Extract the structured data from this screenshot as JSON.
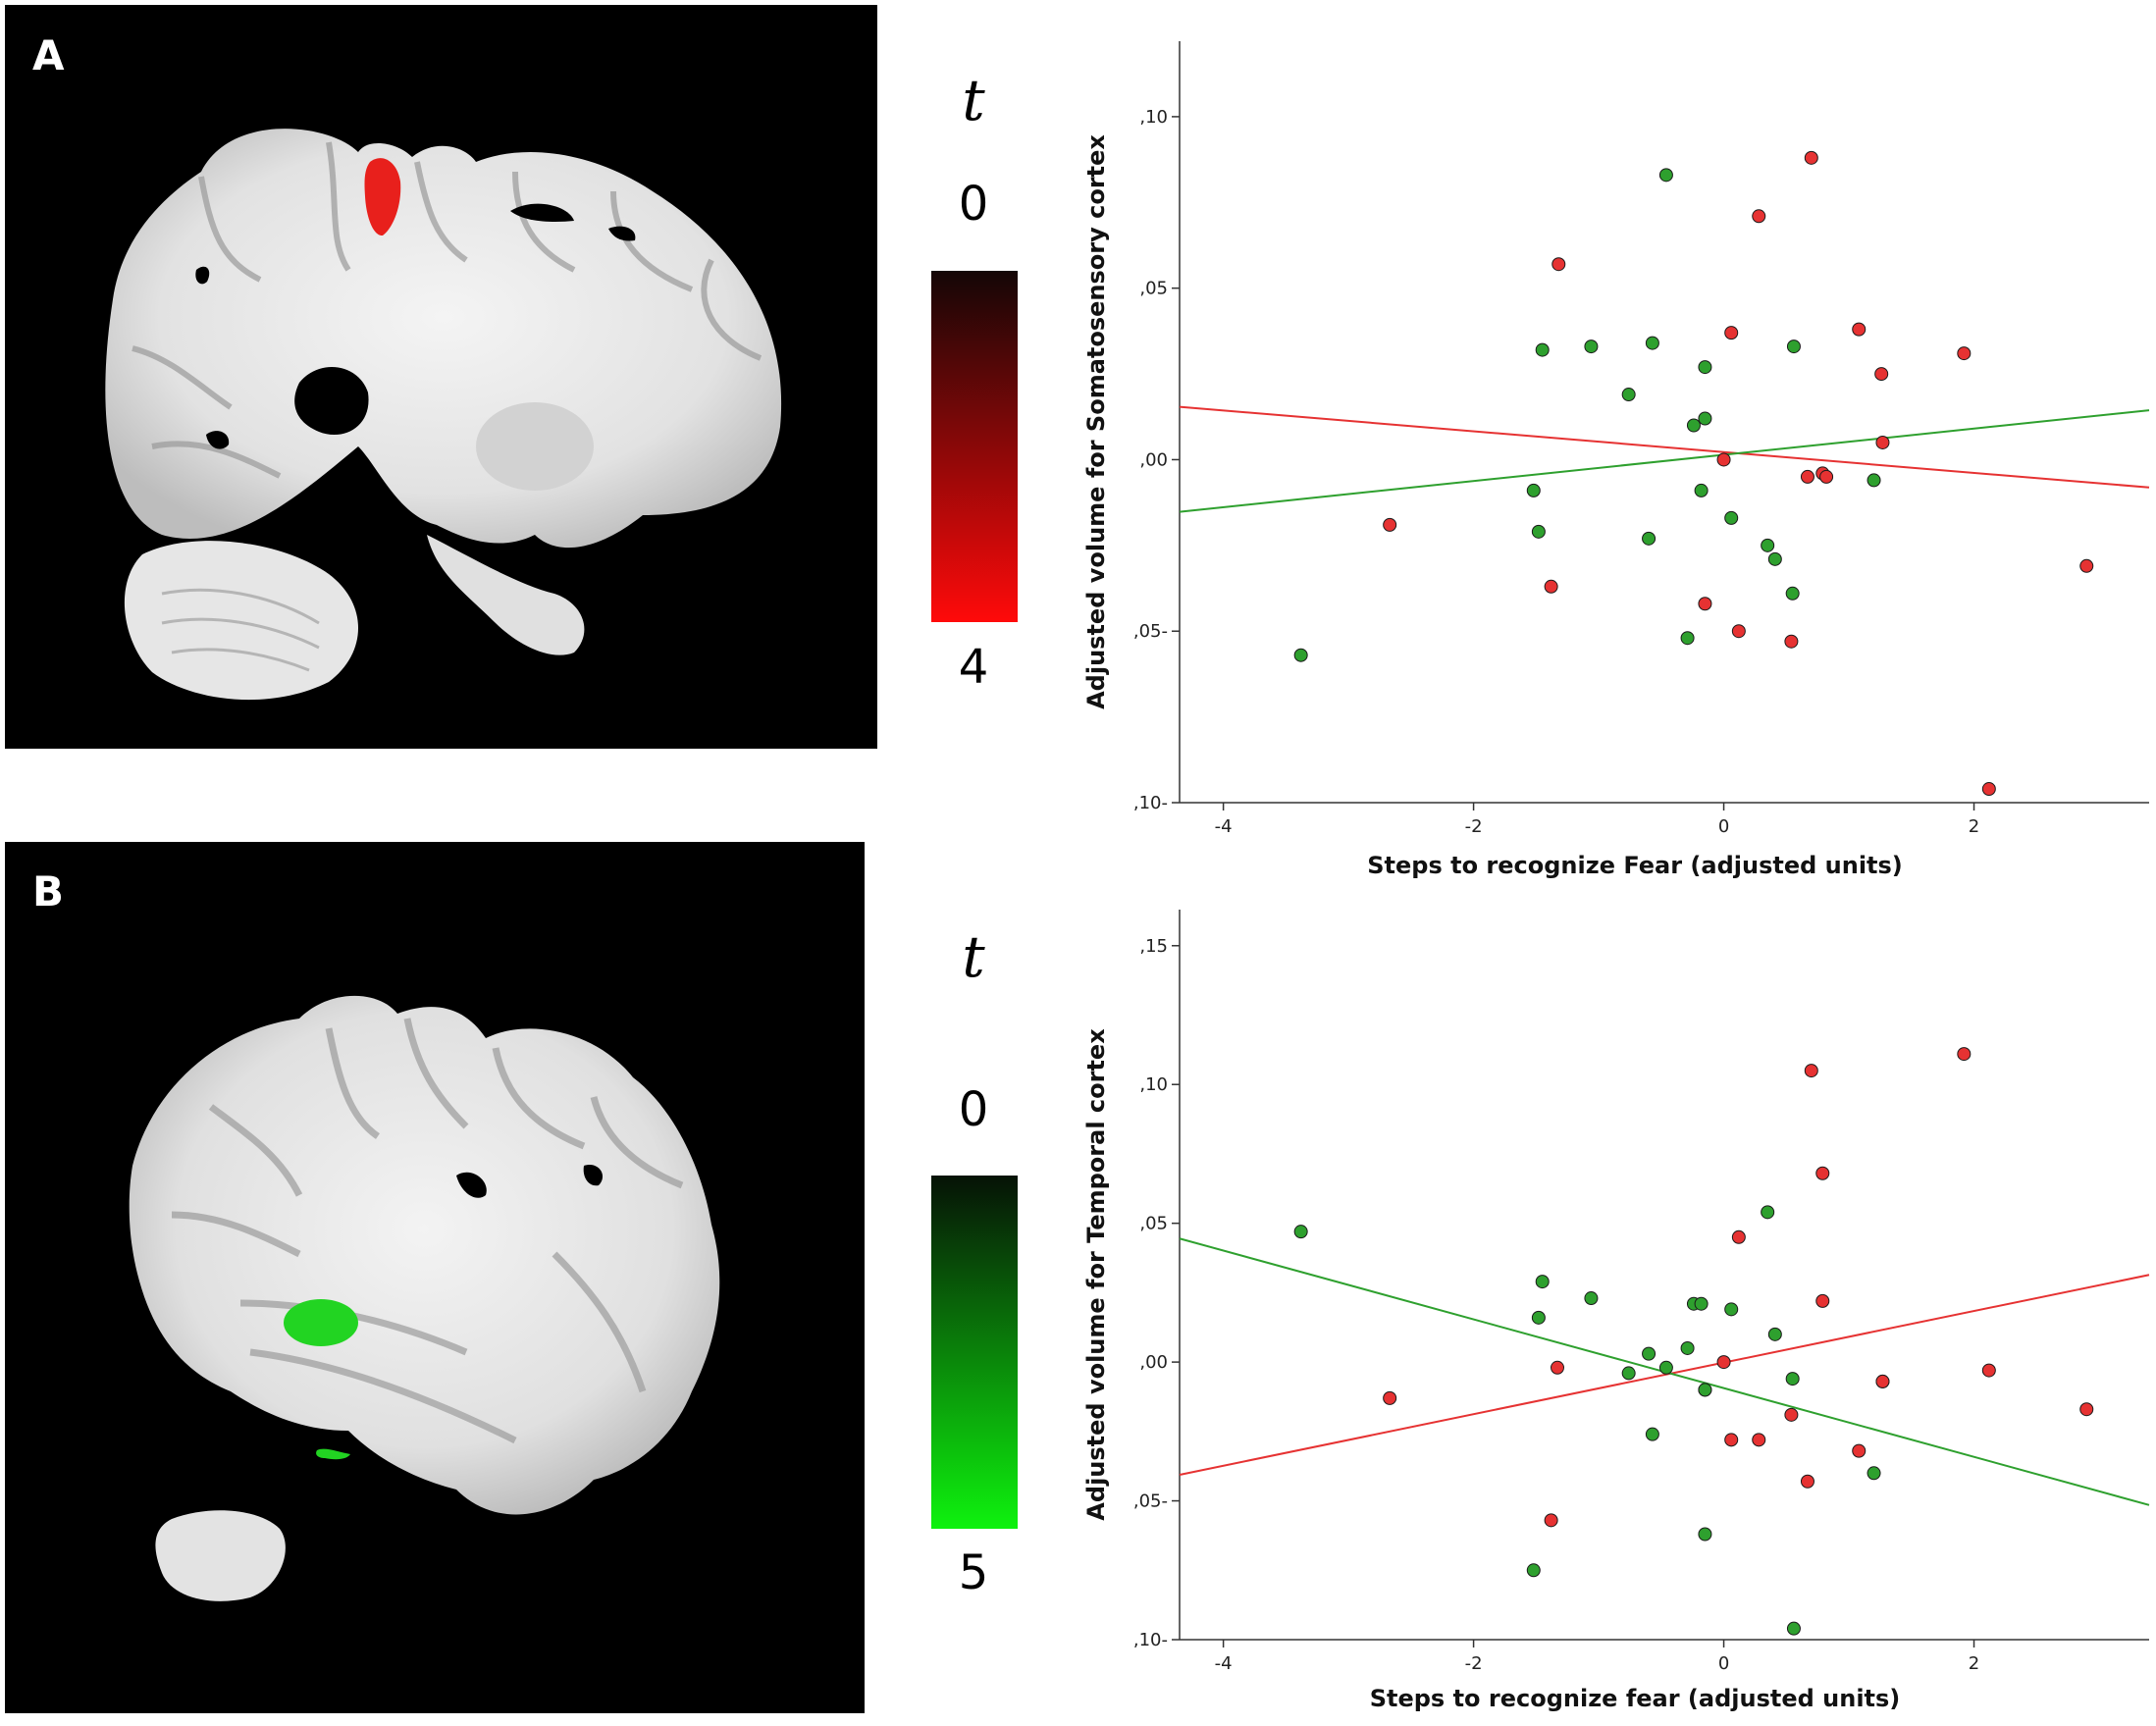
{
  "panels": [
    {
      "letter": "A",
      "scale": {
        "symbol": "t",
        "top": "0",
        "bottom": "4",
        "color_top": "#140606",
        "color_bottom": "#ff0a0a"
      },
      "brain_blob_color": "#e8201c"
    },
    {
      "letter": "B",
      "scale": {
        "symbol": "t",
        "top": "0",
        "bottom": "5",
        "color_top": "#061206",
        "color_bottom": "#0ef20e"
      },
      "brain_blob_color": "#22d422"
    }
  ],
  "chart_data": [
    {
      "type": "scatter",
      "title": "",
      "xlabel": "Steps to recognize Fear (adjusted units)",
      "ylabel": "Adjusted volume for Somatosensory cortex",
      "xlim": [
        -4.35,
        3.4
      ],
      "ylim": [
        -0.1,
        0.122
      ],
      "xticks": [
        -4,
        -2,
        0,
        2
      ],
      "xtick_labels": [
        "-4",
        "-2",
        "0",
        "2"
      ],
      "yticks": [
        -0.1,
        -0.05,
        0.0,
        0.05,
        0.1
      ],
      "ytick_labels": [
        ",10-",
        ",05-",
        ",00",
        ",05",
        ",10"
      ],
      "grid": false,
      "series": [
        {
          "color": "#e63232",
          "points": [
            [
              -1.32,
              0.057
            ],
            [
              0.7,
              0.088
            ],
            [
              0.28,
              0.071
            ],
            [
              0.06,
              0.037
            ],
            [
              1.08,
              0.038
            ],
            [
              1.26,
              0.025
            ],
            [
              1.92,
              0.031
            ],
            [
              -2.67,
              -0.019
            ],
            [
              -1.38,
              -0.037
            ],
            [
              -0.15,
              -0.042
            ],
            [
              0.12,
              -0.05
            ],
            [
              0.54,
              -0.053
            ],
            [
              0.67,
              -0.005
            ],
            [
              0.79,
              -0.004
            ],
            [
              0.82,
              -0.005
            ],
            [
              1.27,
              0.005
            ],
            [
              0.0,
              0.0
            ],
            [
              2.12,
              -0.096
            ],
            [
              2.9,
              -0.031
            ]
          ],
          "fit": {
            "x": [
              -4.35,
              3.4
            ],
            "y": [
              0.0154,
              -0.0081
            ]
          }
        },
        {
          "color": "#2ea02e",
          "points": [
            [
              -0.46,
              0.083
            ],
            [
              -1.45,
              0.032
            ],
            [
              -1.06,
              0.033
            ],
            [
              -0.57,
              0.034
            ],
            [
              0.56,
              0.033
            ],
            [
              -0.76,
              0.019
            ],
            [
              -0.15,
              0.027
            ],
            [
              -0.15,
              0.012
            ],
            [
              -0.24,
              0.01
            ],
            [
              -1.52,
              -0.009
            ],
            [
              -1.48,
              -0.021
            ],
            [
              -0.6,
              -0.023
            ],
            [
              -0.18,
              -0.009
            ],
            [
              0.06,
              -0.017
            ],
            [
              0.35,
              -0.025
            ],
            [
              0.41,
              -0.029
            ],
            [
              0.55,
              -0.039
            ],
            [
              -0.29,
              -0.052
            ],
            [
              1.2,
              -0.006
            ],
            [
              -3.38,
              -0.057
            ]
          ],
          "fit": {
            "x": [
              -4.35,
              3.4
            ],
            "y": [
              -0.0152,
              0.0144
            ]
          }
        }
      ]
    },
    {
      "type": "scatter",
      "title": "",
      "xlabel": "Steps to recognize fear (adjusted units)",
      "ylabel": "Adjusted volume for Temporal cortex",
      "xlim": [
        -4.35,
        3.4
      ],
      "ylim": [
        -0.1,
        0.163
      ],
      "xticks": [
        -4,
        -2,
        0,
        2
      ],
      "xtick_labels": [
        "-4",
        "-2",
        "0",
        "2"
      ],
      "yticks": [
        -0.1,
        -0.05,
        0.0,
        0.05,
        0.1,
        0.15
      ],
      "ytick_labels": [
        ",10-",
        ",05-",
        ",00",
        ",05",
        ",10",
        ",15"
      ],
      "grid": false,
      "series": [
        {
          "color": "#e63232",
          "points": [
            [
              0.7,
              0.105
            ],
            [
              1.92,
              0.111
            ],
            [
              0.79,
              0.068
            ],
            [
              0.12,
              0.045
            ],
            [
              0.79,
              0.022
            ],
            [
              -2.67,
              -0.013
            ],
            [
              -1.33,
              -0.002
            ],
            [
              0.0,
              0.0
            ],
            [
              -0.15,
              -0.01
            ],
            [
              0.06,
              -0.028
            ],
            [
              0.28,
              -0.028
            ],
            [
              0.54,
              -0.019
            ],
            [
              1.27,
              -0.007
            ],
            [
              1.27,
              -0.007
            ],
            [
              2.12,
              -0.003
            ],
            [
              1.08,
              -0.032
            ],
            [
              0.67,
              -0.043
            ],
            [
              -1.38,
              -0.057
            ],
            [
              2.9,
              -0.017
            ]
          ],
          "fit": {
            "x": [
              -4.35,
              3.4
            ],
            "y": [
              -0.0406,
              0.0314
            ]
          }
        },
        {
          "color": "#2ea02e",
          "points": [
            [
              -3.38,
              0.047
            ],
            [
              -1.45,
              0.029
            ],
            [
              -1.06,
              0.023
            ],
            [
              -1.48,
              0.016
            ],
            [
              0.35,
              0.054
            ],
            [
              -0.24,
              0.021
            ],
            [
              -0.18,
              0.021
            ],
            [
              0.06,
              0.019
            ],
            [
              0.41,
              0.01
            ],
            [
              -0.6,
              0.003
            ],
            [
              -0.76,
              -0.004
            ],
            [
              -0.46,
              -0.002
            ],
            [
              -0.29,
              0.005
            ],
            [
              0.55,
              -0.006
            ],
            [
              -0.15,
              -0.01
            ],
            [
              -0.57,
              -0.026
            ],
            [
              1.2,
              -0.04
            ],
            [
              -1.52,
              -0.075
            ],
            [
              -0.15,
              -0.062
            ],
            [
              0.56,
              -0.096
            ]
          ],
          "fit": {
            "x": [
              -4.35,
              3.4
            ],
            "y": [
              0.0445,
              -0.0515
            ]
          }
        }
      ]
    }
  ]
}
